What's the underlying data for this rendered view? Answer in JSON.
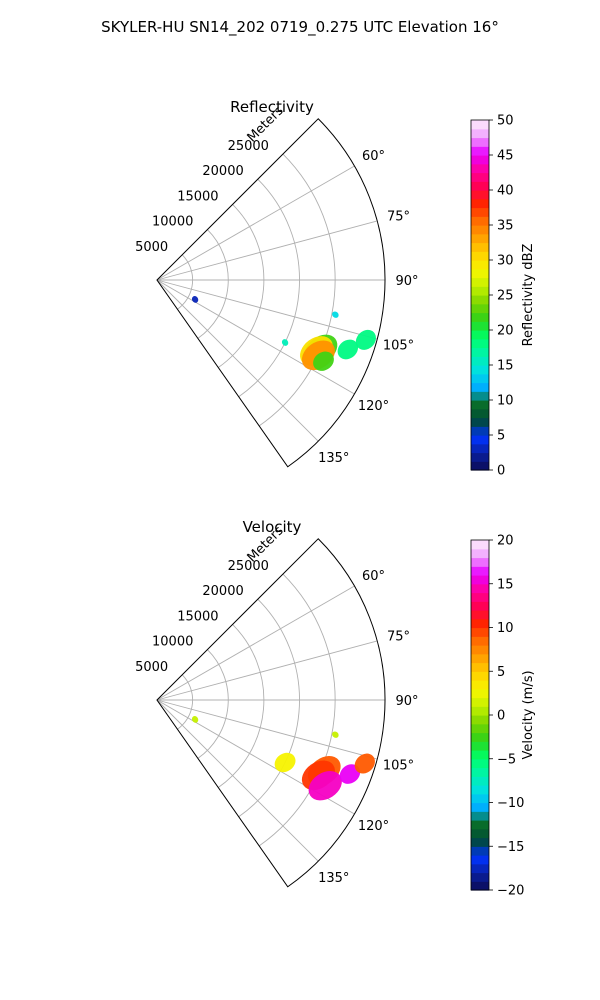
{
  "figure": {
    "suptitle": "SKYLER-HU  SN14_202  0719_0.275 UTC Elevation 16°"
  },
  "chart_data": [
    {
      "type": "polar-sector",
      "title": "Reflectivity",
      "radial_axis_label": "Meters",
      "radial_ticks": [
        5000,
        10000,
        15000,
        20000,
        25000
      ],
      "radial_tick_labels": [
        "5000",
        "10000",
        "15000",
        "20000",
        "25000"
      ],
      "rlim": [
        0,
        32000
      ],
      "azimuth_ticks": [
        60,
        75,
        90,
        105,
        120,
        135
      ],
      "azimuth_tick_labels": [
        "60°",
        "75°",
        "90°",
        "105°",
        "120°",
        "135°"
      ],
      "azimuth_range": [
        45,
        145
      ],
      "spoke_angles": [
        45,
        60,
        75,
        90,
        105,
        120,
        135,
        145
      ],
      "grid": true,
      "colorbar": {
        "label": "Reflectivity dBZ",
        "range": [
          0,
          50
        ],
        "ticks": [
          0,
          5,
          10,
          15,
          20,
          25,
          30,
          35,
          40,
          45,
          50
        ],
        "tick_labels": [
          "0",
          "5",
          "10",
          "15",
          "20",
          "25",
          "30",
          "35",
          "40",
          "45",
          "50"
        ],
        "stops": [
          "#0b0a55",
          "#0a1f9e",
          "#0033ff",
          "#004a36",
          "#0a6e2a",
          "#00b0ff",
          "#00e0e0",
          "#00f4a8",
          "#00ff66",
          "#2ed31a",
          "#7ad500",
          "#c4f000",
          "#f6f600",
          "#ffd200",
          "#ffa000",
          "#ff6a00",
          "#ff2400",
          "#ff0050",
          "#ff00a0",
          "#e800ff",
          "#f0a0ff",
          "#fff0fb"
        ]
      },
      "echo_regions": [
        {
          "az": 113,
          "r": 25000,
          "value": 22
        },
        {
          "az": 114,
          "r": 24500,
          "value": 30
        },
        {
          "az": 115,
          "r": 25000,
          "value": 34
        },
        {
          "az": 116,
          "r": 26000,
          "value": 22
        },
        {
          "az": 110,
          "r": 28500,
          "value": 18
        },
        {
          "az": 106,
          "r": 30500,
          "value": 18
        },
        {
          "az": 116,
          "r": 20000,
          "value": 16
        },
        {
          "az": 101,
          "r": 25500,
          "value": 14
        },
        {
          "az": 117,
          "r": 6000,
          "value": 3
        }
      ]
    },
    {
      "type": "polar-sector",
      "title": "Velocity",
      "radial_axis_label": "Meters",
      "radial_ticks": [
        5000,
        10000,
        15000,
        20000,
        25000
      ],
      "radial_tick_labels": [
        "5000",
        "10000",
        "15000",
        "20000",
        "25000"
      ],
      "rlim": [
        0,
        32000
      ],
      "azimuth_ticks": [
        60,
        75,
        90,
        105,
        120,
        135
      ],
      "azimuth_tick_labels": [
        "60°",
        "75°",
        "90°",
        "105°",
        "120°",
        "135°"
      ],
      "azimuth_range": [
        45,
        145
      ],
      "spoke_angles": [
        45,
        60,
        75,
        90,
        105,
        120,
        135,
        145
      ],
      "grid": true,
      "colorbar": {
        "label": "Velocity (m/s)",
        "range": [
          -20,
          20
        ],
        "ticks": [
          -20,
          -15,
          -10,
          -5,
          0,
          5,
          10,
          15,
          20
        ],
        "tick_labels": [
          "−20",
          "−15",
          "−10",
          "−5",
          "0",
          "5",
          "10",
          "15",
          "20"
        ],
        "stops": [
          "#0b0a55",
          "#0a1f9e",
          "#0033ff",
          "#004a36",
          "#0a6e2a",
          "#00b0ff",
          "#00e0e0",
          "#00f4a8",
          "#00ff66",
          "#2ed31a",
          "#7ad500",
          "#c4f000",
          "#f6f600",
          "#ffd200",
          "#ffa000",
          "#ff6a00",
          "#ff2400",
          "#ff0050",
          "#ff00a0",
          "#e800ff",
          "#f0a0ff",
          "#fff0fb"
        ]
      },
      "echo_regions": [
        {
          "az": 113,
          "r": 25500,
          "value": 9
        },
        {
          "az": 115,
          "r": 25000,
          "value": 10
        },
        {
          "az": 117,
          "r": 26500,
          "value": 15
        },
        {
          "az": 111,
          "r": 29000,
          "value": 16
        },
        {
          "az": 107,
          "r": 30500,
          "value": 9
        },
        {
          "az": 116,
          "r": 20000,
          "value": 3
        },
        {
          "az": 101,
          "r": 25500,
          "value": 1
        },
        {
          "az": 117,
          "r": 6000,
          "value": 1
        }
      ]
    }
  ]
}
